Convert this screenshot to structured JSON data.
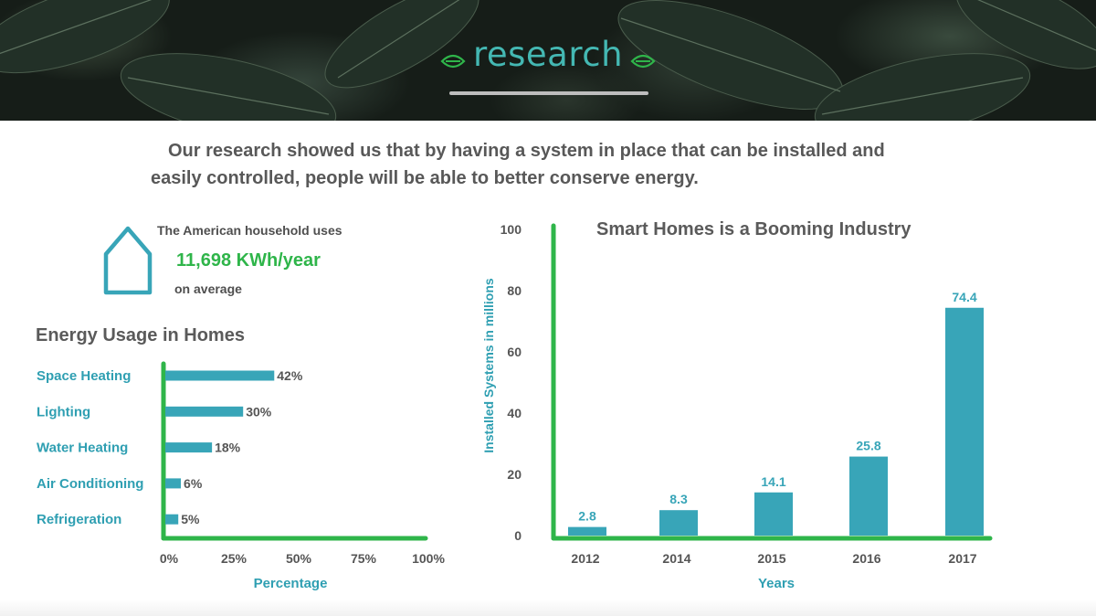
{
  "hero": {
    "title": "research",
    "accent_color": "#44b8b3",
    "leaf_color": "#2fb54a",
    "icons": [
      "leaf-icon",
      "leaf-icon"
    ]
  },
  "intro": {
    "line1": "Our research showed us that by having a system in place that can be installed and",
    "line2": "easily controlled, people will be able to better conserve energy."
  },
  "household": {
    "icon": "house-icon",
    "line_top": "The American household uses",
    "value": "11,698 KWh/year",
    "line_bottom": "on average"
  },
  "colors": {
    "bar": "#38a5b8",
    "axis": "#2fb54a",
    "category_text": "#2f9fb2",
    "tick_text": "#555555",
    "value_label": "#555555"
  },
  "chart_data": [
    {
      "type": "bar",
      "orientation": "horizontal",
      "title": "Energy Usage in Homes",
      "categories": [
        "Space Heating",
        "Lighting",
        "Water Heating",
        "Air Conditioning",
        "Refrigeration"
      ],
      "values": [
        42,
        30,
        18,
        6,
        5
      ],
      "value_labels": [
        "42%",
        "30%",
        "18%",
        "6%",
        "5%"
      ],
      "xlabel": "Percentage",
      "ylabel": "",
      "xlim": [
        0,
        100
      ],
      "xticks": [
        "0%",
        "25%",
        "50%",
        "75%",
        "100%"
      ],
      "grid": false,
      "legend": false
    },
    {
      "type": "bar",
      "orientation": "vertical",
      "title": "Smart Homes is a Booming Industry",
      "categories": [
        "2012",
        "2014",
        "2015",
        "2016",
        "2017"
      ],
      "values": [
        2.8,
        8.3,
        14.1,
        25.8,
        74.4
      ],
      "value_labels": [
        "2.8",
        "8.3",
        "14.1",
        "25.8",
        "74.4"
      ],
      "xlabel": "Years",
      "ylabel": "Installed Systems in millions",
      "ylim": [
        0,
        100
      ],
      "yticks": [
        "0",
        "20",
        "40",
        "60",
        "80",
        "100"
      ],
      "grid": false,
      "legend": false
    }
  ]
}
